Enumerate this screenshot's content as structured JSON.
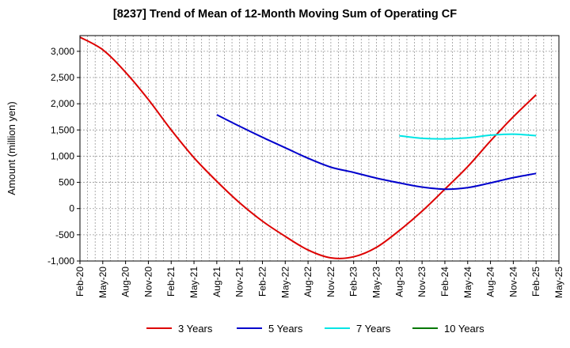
{
  "chart_data": {
    "type": "line",
    "title": "[8237]  Trend of Mean of 12-Month Moving Sum of Operating CF",
    "xlabel": "",
    "ylabel": "Amount (million yen)",
    "ylim": [
      -1000,
      3300
    ],
    "yticks": [
      -1000,
      -500,
      0,
      500,
      1000,
      1500,
      2000,
      2500,
      3000
    ],
    "ytick_labels": [
      "-1,000",
      "-500",
      "0",
      "500",
      "1,000",
      "1,500",
      "2,000",
      "2,500",
      "3,000"
    ],
    "x_start": "Feb-20",
    "x_months": 63,
    "xtick_labels": [
      "Feb-20",
      "May-20",
      "Aug-20",
      "Nov-20",
      "Feb-21",
      "May-21",
      "Aug-21",
      "Nov-21",
      "Feb-22",
      "May-22",
      "Aug-22",
      "Nov-22",
      "Feb-23",
      "May-23",
      "Aug-23",
      "Nov-23",
      "Feb-24",
      "May-24",
      "Aug-24",
      "Nov-24",
      "Feb-25",
      "May-25"
    ],
    "grid": true,
    "legend_position": "bottom",
    "series": [
      {
        "name": "3 Years",
        "color": "#dd0000",
        "points": [
          [
            0,
            3270
          ],
          [
            3,
            3030
          ],
          [
            6,
            2600
          ],
          [
            9,
            2080
          ],
          [
            12,
            1500
          ],
          [
            15,
            970
          ],
          [
            18,
            520
          ],
          [
            21,
            110
          ],
          [
            24,
            -240
          ],
          [
            27,
            -530
          ],
          [
            30,
            -790
          ],
          [
            33,
            -940
          ],
          [
            36,
            -920
          ],
          [
            39,
            -740
          ],
          [
            42,
            -420
          ],
          [
            45,
            -50
          ],
          [
            48,
            370
          ],
          [
            51,
            800
          ],
          [
            54,
            1290
          ],
          [
            57,
            1750
          ],
          [
            60,
            2170
          ]
        ]
      },
      {
        "name": "5 Years",
        "color": "#0000cc",
        "points": [
          [
            18,
            1790
          ],
          [
            21,
            1570
          ],
          [
            24,
            1360
          ],
          [
            27,
            1160
          ],
          [
            30,
            960
          ],
          [
            33,
            790
          ],
          [
            36,
            690
          ],
          [
            39,
            580
          ],
          [
            42,
            490
          ],
          [
            45,
            410
          ],
          [
            48,
            370
          ],
          [
            51,
            400
          ],
          [
            54,
            490
          ],
          [
            57,
            590
          ],
          [
            60,
            670
          ]
        ]
      },
      {
        "name": "7 Years",
        "color": "#00e5e5",
        "points": [
          [
            42,
            1390
          ],
          [
            45,
            1340
          ],
          [
            48,
            1330
          ],
          [
            51,
            1350
          ],
          [
            54,
            1400
          ],
          [
            57,
            1420
          ],
          [
            60,
            1390
          ]
        ]
      },
      {
        "name": "10 Years",
        "color": "#007700",
        "points": []
      }
    ]
  }
}
